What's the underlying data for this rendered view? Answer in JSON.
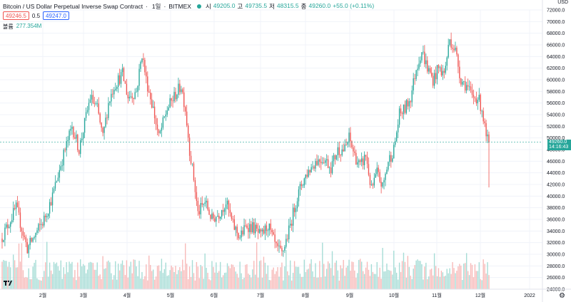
{
  "legend": {
    "title": "Bitcoin / US Dollar Perpetual Inverse Swap Contract",
    "timeframe": "1일",
    "exchange": "BITMEX",
    "open_label": "시",
    "open": "49205.0",
    "high_label": "고",
    "high": "49735.5",
    "low_label": "저",
    "low": "48315.5",
    "close_label": "종",
    "close": "49260.0",
    "change": "+55.0 (+0.11%)"
  },
  "order": {
    "sell": "49246.5",
    "spread": "0.5",
    "buy": "49247.0"
  },
  "volume": {
    "label": "볼륨",
    "value": "277.354M"
  },
  "price_tag": {
    "price": "49260.0",
    "countdown": "14:16:43"
  },
  "axis_currency": "USD",
  "colors": {
    "up": "#26a69a",
    "down": "#ef5350",
    "up_vol": "#a5dcd5",
    "down_vol": "#f7b9b8"
  },
  "chart_data": {
    "type": "candlestick",
    "ylim": [
      24000,
      72000
    ],
    "y_ticks": [
      72000,
      70000,
      68000,
      66000,
      64000,
      62000,
      60000,
      58000,
      56000,
      54000,
      52000,
      50000,
      48000,
      46000,
      44000,
      42000,
      40000,
      38000,
      36000,
      34000,
      32000,
      30000,
      28000,
      26000,
      24000
    ],
    "x_ticks": [
      "2월",
      "3월",
      "4월",
      "5월",
      "6월",
      "7월",
      "8월",
      "9월",
      "10월",
      "11월",
      "12월",
      "2022"
    ],
    "last_price": 49260.0,
    "anchors": [
      [
        0,
        33000
      ],
      [
        10,
        38000
      ],
      [
        18,
        31000
      ],
      [
        30,
        36000
      ],
      [
        36,
        40000
      ],
      [
        42,
        45500
      ],
      [
        50,
        52000
      ],
      [
        55,
        48000
      ],
      [
        63,
        57000
      ],
      [
        68,
        55000
      ],
      [
        72,
        50000
      ],
      [
        76,
        56000
      ],
      [
        80,
        59000
      ],
      [
        86,
        61000
      ],
      [
        90,
        57000
      ],
      [
        96,
        58000
      ],
      [
        100,
        64500
      ],
      [
        103,
        60000
      ],
      [
        108,
        55000
      ],
      [
        112,
        50000
      ],
      [
        118,
        55000
      ],
      [
        124,
        57500
      ],
      [
        128,
        59000
      ],
      [
        131,
        55000
      ],
      [
        134,
        48000
      ],
      [
        137,
        43000
      ],
      [
        140,
        37000
      ],
      [
        145,
        39000
      ],
      [
        150,
        36000
      ],
      [
        155,
        37000
      ],
      [
        160,
        39000
      ],
      [
        165,
        35000
      ],
      [
        170,
        33000
      ],
      [
        175,
        35000
      ],
      [
        180,
        34500
      ],
      [
        185,
        33000
      ],
      [
        190,
        35000
      ],
      [
        196,
        31000
      ],
      [
        200,
        30000
      ],
      [
        205,
        34000
      ],
      [
        210,
        39000
      ],
      [
        214,
        42000
      ],
      [
        218,
        44000
      ],
      [
        224,
        46000
      ],
      [
        230,
        46500
      ],
      [
        235,
        45000
      ],
      [
        240,
        48000
      ],
      [
        245,
        48000
      ],
      [
        248,
        50000
      ],
      [
        252,
        47000
      ],
      [
        256,
        45000
      ],
      [
        260,
        47000
      ],
      [
        264,
        41000
      ],
      [
        268,
        44000
      ],
      [
        272,
        41500
      ],
      [
        276,
        46000
      ],
      [
        280,
        48000
      ],
      [
        284,
        54000
      ],
      [
        288,
        55000
      ],
      [
        292,
        57000
      ],
      [
        296,
        62000
      ],
      [
        300,
        65000
      ],
      [
        304,
        62000
      ],
      [
        308,
        60000
      ],
      [
        312,
        62000
      ],
      [
        316,
        61000
      ],
      [
        320,
        67000
      ],
      [
        324,
        65000
      ],
      [
        328,
        60000
      ],
      [
        332,
        59000
      ],
      [
        336,
        57000
      ],
      [
        340,
        57000
      ],
      [
        343,
        55000
      ],
      [
        346,
        50000
      ],
      [
        348,
        49260
      ]
    ],
    "volume_ylim": [
      0,
      100
    ]
  }
}
